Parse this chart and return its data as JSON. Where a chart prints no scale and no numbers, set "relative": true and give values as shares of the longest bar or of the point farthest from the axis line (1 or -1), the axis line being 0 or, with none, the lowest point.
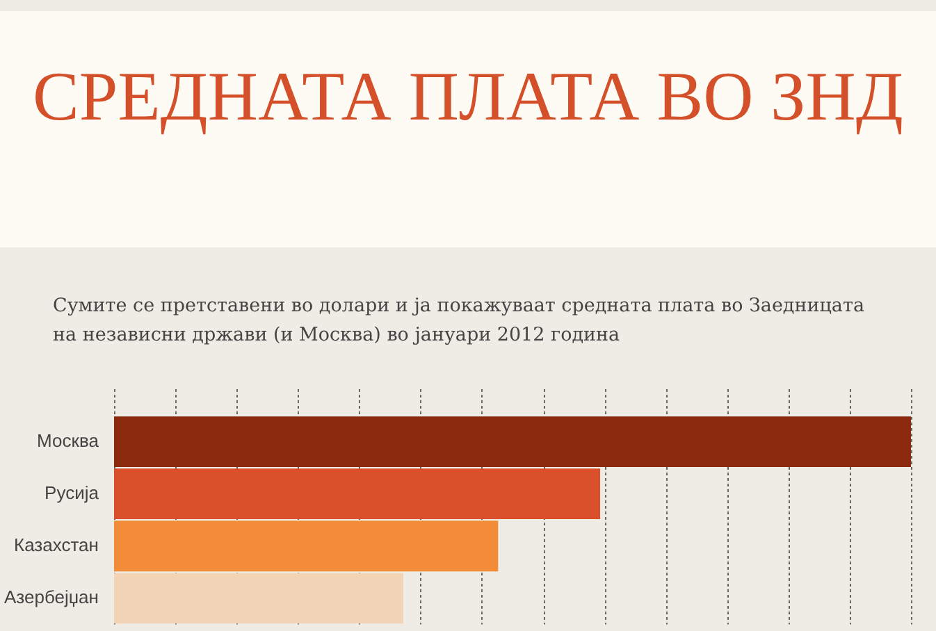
{
  "chart_data": {
    "type": "bar",
    "orientation": "horizontal",
    "relative": true,
    "grid": "x",
    "title": "СРЕДНАТА ПЛАТА ВО ЗНД",
    "subtitle": "Сумите се претставени во долари и ја покажуваат средната плата во Заедницата на независни држави (и Москва) во јануари 2012 година",
    "categories": [
      "Москва",
      "Русија",
      "Казахстан",
      "Азербејџан"
    ],
    "values": [
      1,
      0.61,
      0.482,
      0.363
    ],
    "colors": [
      "#8b2a0e",
      "#d9502a",
      "#f28c38",
      "#f2d3b6"
    ]
  }
}
